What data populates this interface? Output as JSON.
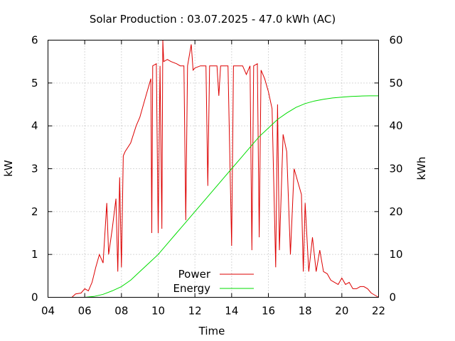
{
  "chart_data": {
    "type": "line",
    "title": "Solar Production : 03.07.2025 - 47.0 kWh (AC)",
    "xlabel": "Time",
    "ylabel_left": "kW",
    "ylabel_right": "kWh",
    "x_ticks": [
      "04",
      "06",
      "08",
      "10",
      "12",
      "14",
      "16",
      "18",
      "20",
      "22"
    ],
    "x_range": [
      4,
      22
    ],
    "y_left_ticks": [
      "0",
      "1",
      "2",
      "3",
      "4",
      "5",
      "6"
    ],
    "y_left_range": [
      0,
      6
    ],
    "y_right_ticks": [
      "0",
      "10",
      "20",
      "30",
      "40",
      "50",
      "60"
    ],
    "y_right_range": [
      0,
      60
    ],
    "grid": true,
    "legend_position": "bottom-center",
    "series": [
      {
        "name": "Power",
        "axis": "left",
        "color": "#dd0000",
        "points": [
          [
            5.3,
            0.0
          ],
          [
            5.5,
            0.08
          ],
          [
            5.8,
            0.1
          ],
          [
            6.0,
            0.2
          ],
          [
            6.2,
            0.15
          ],
          [
            6.4,
            0.35
          ],
          [
            6.6,
            0.7
          ],
          [
            6.8,
            1.0
          ],
          [
            7.0,
            0.8
          ],
          [
            7.2,
            2.2
          ],
          [
            7.3,
            1.0
          ],
          [
            7.5,
            1.6
          ],
          [
            7.7,
            2.3
          ],
          [
            7.8,
            0.6
          ],
          [
            7.9,
            2.8
          ],
          [
            8.0,
            0.7
          ],
          [
            8.1,
            3.3
          ],
          [
            8.2,
            3.4
          ],
          [
            8.5,
            3.6
          ],
          [
            8.8,
            4.0
          ],
          [
            9.0,
            4.2
          ],
          [
            9.2,
            4.5
          ],
          [
            9.4,
            4.8
          ],
          [
            9.6,
            5.1
          ],
          [
            9.65,
            1.5
          ],
          [
            9.7,
            5.4
          ],
          [
            9.9,
            5.45
          ],
          [
            10.0,
            1.5
          ],
          [
            10.1,
            5.4
          ],
          [
            10.2,
            1.6
          ],
          [
            10.25,
            6.0
          ],
          [
            10.3,
            5.5
          ],
          [
            10.5,
            5.55
          ],
          [
            10.7,
            5.5
          ],
          [
            11.0,
            5.45
          ],
          [
            11.2,
            5.4
          ],
          [
            11.4,
            5.4
          ],
          [
            11.5,
            1.8
          ],
          [
            11.6,
            5.4
          ],
          [
            11.8,
            5.9
          ],
          [
            11.9,
            5.3
          ],
          [
            12.0,
            5.35
          ],
          [
            12.3,
            5.4
          ],
          [
            12.6,
            5.4
          ],
          [
            12.7,
            2.6
          ],
          [
            12.8,
            5.4
          ],
          [
            13.2,
            5.4
          ],
          [
            13.3,
            4.7
          ],
          [
            13.4,
            5.4
          ],
          [
            13.8,
            5.4
          ],
          [
            14.0,
            1.2
          ],
          [
            14.1,
            5.4
          ],
          [
            14.6,
            5.4
          ],
          [
            14.8,
            5.2
          ],
          [
            15.0,
            5.4
          ],
          [
            15.1,
            1.1
          ],
          [
            15.2,
            5.4
          ],
          [
            15.4,
            5.45
          ],
          [
            15.5,
            1.4
          ],
          [
            15.6,
            5.3
          ],
          [
            15.8,
            5.1
          ],
          [
            16.0,
            4.8
          ],
          [
            16.2,
            4.4
          ],
          [
            16.4,
            0.7
          ],
          [
            16.5,
            4.5
          ],
          [
            16.6,
            1.1
          ],
          [
            16.8,
            3.8
          ],
          [
            17.0,
            3.4
          ],
          [
            17.2,
            1.0
          ],
          [
            17.4,
            3.0
          ],
          [
            17.6,
            2.7
          ],
          [
            17.8,
            2.4
          ],
          [
            17.9,
            0.6
          ],
          [
            18.0,
            2.2
          ],
          [
            18.2,
            0.6
          ],
          [
            18.4,
            1.4
          ],
          [
            18.6,
            0.6
          ],
          [
            18.8,
            1.1
          ],
          [
            19.0,
            0.6
          ],
          [
            19.2,
            0.55
          ],
          [
            19.4,
            0.4
          ],
          [
            19.6,
            0.35
          ],
          [
            19.8,
            0.3
          ],
          [
            20.0,
            0.45
          ],
          [
            20.2,
            0.3
          ],
          [
            20.4,
            0.35
          ],
          [
            20.6,
            0.2
          ],
          [
            20.8,
            0.2
          ],
          [
            21.0,
            0.25
          ],
          [
            21.2,
            0.25
          ],
          [
            21.4,
            0.2
          ],
          [
            21.6,
            0.1
          ],
          [
            21.8,
            0.05
          ],
          [
            22.0,
            0.0
          ]
        ]
      },
      {
        "name": "Energy",
        "axis": "right",
        "color": "#00dd00",
        "points": [
          [
            5.3,
            0.0
          ],
          [
            6.0,
            0.0
          ],
          [
            6.5,
            0.2
          ],
          [
            7.0,
            0.7
          ],
          [
            7.5,
            1.5
          ],
          [
            8.0,
            2.5
          ],
          [
            8.5,
            4.0
          ],
          [
            9.0,
            6.0
          ],
          [
            9.5,
            8.0
          ],
          [
            10.0,
            10.0
          ],
          [
            10.5,
            12.5
          ],
          [
            11.0,
            15.0
          ],
          [
            11.5,
            17.5
          ],
          [
            12.0,
            20.0
          ],
          [
            12.5,
            22.5
          ],
          [
            13.0,
            25.0
          ],
          [
            13.5,
            27.5
          ],
          [
            14.0,
            30.0
          ],
          [
            14.5,
            32.5
          ],
          [
            15.0,
            35.0
          ],
          [
            15.5,
            37.5
          ],
          [
            16.0,
            39.5
          ],
          [
            16.5,
            41.5
          ],
          [
            17.0,
            43.0
          ],
          [
            17.5,
            44.3
          ],
          [
            18.0,
            45.2
          ],
          [
            18.5,
            45.8
          ],
          [
            19.0,
            46.2
          ],
          [
            19.5,
            46.5
          ],
          [
            20.0,
            46.7
          ],
          [
            20.5,
            46.85
          ],
          [
            21.0,
            46.95
          ],
          [
            21.5,
            47.0
          ],
          [
            22.0,
            47.0
          ]
        ]
      }
    ]
  }
}
